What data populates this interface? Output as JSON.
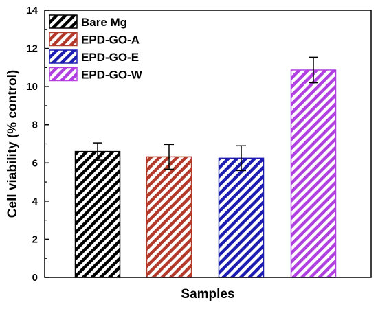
{
  "chart_data": {
    "type": "bar",
    "title": "",
    "xlabel": "Samples",
    "ylabel": "Cell viability (% control)",
    "ylim": [
      0,
      14
    ],
    "yticks": [
      0,
      2,
      4,
      6,
      8,
      10,
      12,
      14
    ],
    "grid": false,
    "legend_position": "top-left",
    "series": [
      {
        "name": "Bare Mg",
        "value": 6.6,
        "error": 0.45,
        "color": "#000000",
        "pattern": "diagonal-hatch"
      },
      {
        "name": "EPD-GO-A",
        "value": 6.32,
        "error": 0.65,
        "color": "#b33a2a",
        "pattern": "diagonal-hatch"
      },
      {
        "name": "EPD-GO-E",
        "value": 6.25,
        "error": 0.65,
        "color": "#1c1cb0",
        "pattern": "diagonal-hatch"
      },
      {
        "name": "EPD-GO-W",
        "value": 10.87,
        "error": 0.67,
        "color": "#b040e0",
        "pattern": "diagonal-hatch"
      }
    ]
  }
}
